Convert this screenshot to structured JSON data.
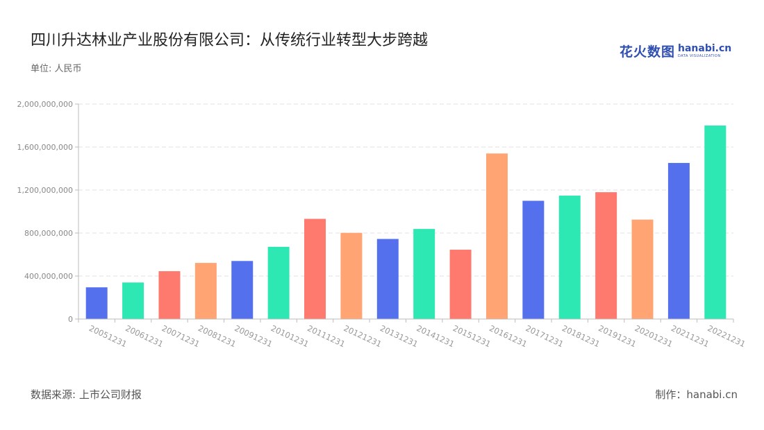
{
  "header": {
    "title": "四川升达林业产业股份有限公司：从传统行业转型大步跨越",
    "unit": "单位: 人民币"
  },
  "logo": {
    "cn": "花火数图",
    "en": "hanabi.cn",
    "sub": "DATA VISUALIZATION"
  },
  "footer": {
    "source": "数据来源: 上市公司财报",
    "maker": "制作：hanabi.cn"
  },
  "chart_data": {
    "type": "bar",
    "title": "",
    "xlabel": "",
    "ylabel": "",
    "ylim": [
      0,
      2000000000
    ],
    "y_ticks": [
      0,
      400000000,
      800000000,
      1200000000,
      1600000000,
      2000000000
    ],
    "y_tick_labels": [
      "0",
      "400,000,000",
      "800,000,000",
      "1,200,000,000",
      "1,600,000,000",
      "2,000,000,000"
    ],
    "grid": true,
    "categories": [
      "20051231",
      "20061231",
      "20071231",
      "20081231",
      "20091231",
      "20101231",
      "20111231",
      "20121231",
      "20131231",
      "20141231",
      "20151231",
      "20161231",
      "20171231",
      "20181231",
      "20191231",
      "20201231",
      "20211231",
      "20221231"
    ],
    "values": [
      295000000,
      340000000,
      445000000,
      522000000,
      540000000,
      672000000,
      932000000,
      802000000,
      745000000,
      838000000,
      645000000,
      1540000000,
      1100000000,
      1148000000,
      1180000000,
      925000000,
      1452000000,
      1800000000
    ],
    "colors": [
      "#5470ed",
      "#2ee8b4",
      "#ff7a6e",
      "#ffa472",
      "#5470ed",
      "#2ee8b4",
      "#ff7a6e",
      "#ffa472",
      "#5470ed",
      "#2ee8b4",
      "#ff7a6e",
      "#ffa472",
      "#5470ed",
      "#2ee8b4",
      "#ff7a6e",
      "#ffa472",
      "#5470ed",
      "#2ee8b4"
    ]
  }
}
